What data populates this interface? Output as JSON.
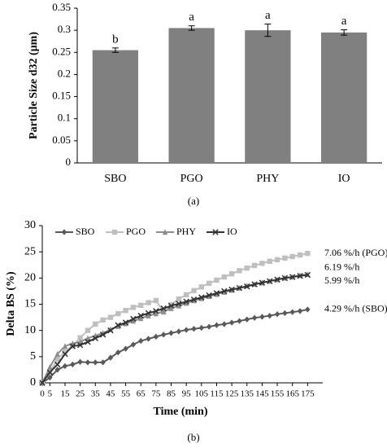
{
  "chart_data": [
    {
      "type": "bar",
      "ylabel": "Particle Size d32 (μm)",
      "caption": "(a)",
      "categories": [
        "SBO",
        "PGO",
        "PHY",
        "IO"
      ],
      "values": [
        0.255,
        0.305,
        0.3,
        0.295
      ],
      "errors": [
        0.005,
        0.005,
        0.014,
        0.006
      ],
      "letters": [
        "b",
        "a",
        "a",
        "a"
      ],
      "color": "#808080",
      "ylim": [
        0,
        0.35
      ],
      "yticks": [
        0,
        0.05,
        0.1,
        0.15,
        0.2,
        0.25,
        0.3,
        0.35
      ]
    },
    {
      "type": "line",
      "ylabel": "Delta BS (%)",
      "xlabel": "Time (min)",
      "caption": "(b)",
      "x": [
        0,
        5,
        10,
        15,
        20,
        25,
        30,
        35,
        40,
        45,
        50,
        55,
        60,
        65,
        70,
        75,
        80,
        85,
        90,
        95,
        100,
        105,
        110,
        115,
        120,
        125,
        130,
        135,
        140,
        145,
        150,
        155,
        160,
        165,
        170,
        175
      ],
      "series": [
        {
          "name": "SBO",
          "color": "#595959",
          "marker": "diamond",
          "annotation": "4.29 %/h (SBO)",
          "values": [
            0,
            1,
            2.5,
            3.2,
            3.5,
            4,
            3.9,
            3.9,
            3.9,
            4.8,
            5.8,
            6.5,
            7.3,
            8,
            8.4,
            8.8,
            9.2,
            9.5,
            9.8,
            10.1,
            10.3,
            10.5,
            10.7,
            11,
            11.2,
            11.5,
            11.8,
            12.1,
            12.4,
            12.6,
            12.8,
            13.1,
            13.3,
            13.5,
            13.7,
            14
          ]
        },
        {
          "name": "PGO",
          "color": "#bfbfbf",
          "marker": "square",
          "annotation": "7.06 %/h (PGO)",
          "values": [
            0,
            2,
            4.5,
            6,
            7,
            8.6,
            10,
            11.2,
            12,
            12.5,
            13.2,
            13.8,
            14.4,
            14.8,
            15.3,
            15.7,
            13.5,
            14.9,
            16,
            16.8,
            17.6,
            18.3,
            19,
            19.6,
            20.2,
            20.8,
            21.4,
            21.9,
            22.4,
            22.8,
            23.2,
            23.5,
            23.8,
            24.1,
            24.4,
            24.7
          ]
        },
        {
          "name": "PHY",
          "color": "#8c8c8c",
          "marker": "triangle",
          "annotation": "6.19 %/h",
          "values": [
            0,
            3,
            5.5,
            7,
            7.5,
            7.8,
            8.5,
            9,
            9.5,
            10.2,
            10.8,
            11.3,
            11.8,
            12.3,
            12.8,
            13.2,
            13.6,
            14.2,
            14.7,
            15.2,
            15.7,
            16.1,
            16.5,
            16.9,
            17.3,
            17.7,
            18.1,
            18.5,
            18.8,
            19.1,
            19.4,
            19.7,
            20,
            20.2,
            20.5,
            20.7
          ]
        },
        {
          "name": "IO",
          "color": "#333333",
          "marker": "cross",
          "annotation": "5.99 %/h",
          "values": [
            0,
            2,
            3.5,
            5.5,
            7,
            7.2,
            7.8,
            8.5,
            9.2,
            10,
            11,
            11.5,
            12.2,
            12.8,
            13.3,
            13.7,
            14.2,
            14.7,
            15.1,
            15.5,
            15.9,
            16.3,
            16.7,
            17.1,
            17.5,
            17.8,
            18.1,
            18.4,
            18.8,
            19.1,
            19.4,
            19.7,
            20,
            20.2,
            20.4,
            20.6
          ]
        }
      ],
      "xlim": [
        0,
        185
      ],
      "xticks": [
        0,
        5,
        15,
        25,
        35,
        45,
        55,
        65,
        75,
        85,
        95,
        105,
        115,
        125,
        135,
        145,
        155,
        165,
        175
      ],
      "ylim": [
        0,
        30
      ],
      "yticks": [
        0,
        5,
        10,
        15,
        20,
        25,
        30
      ]
    }
  ]
}
